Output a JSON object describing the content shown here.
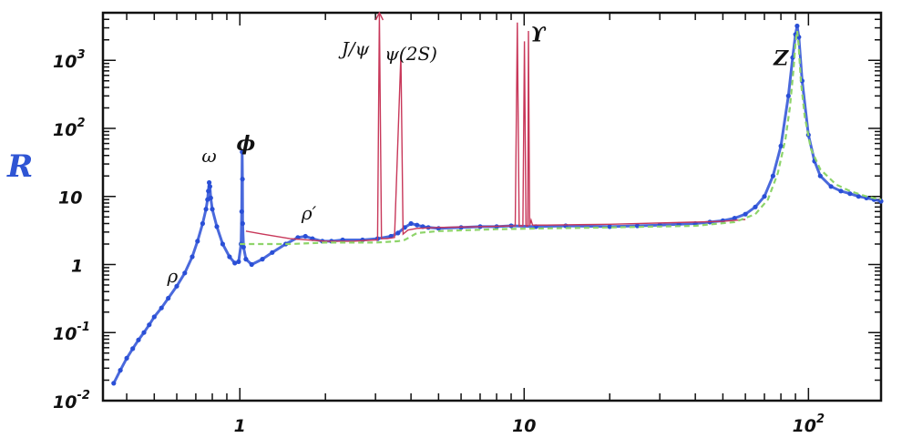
{
  "chart_data": {
    "type": "scatter",
    "title": "",
    "ylabel": "R",
    "xlabel": "",
    "x_scale": "log",
    "y_scale": "log",
    "xlim": [
      0.33,
      180
    ],
    "ylim": [
      0.01,
      5000
    ],
    "x_ticks": [
      {
        "value": 1,
        "label": "1"
      },
      {
        "value": 10,
        "label": "10"
      },
      {
        "value": 100,
        "label": "10",
        "sup": "2"
      }
    ],
    "y_ticks": [
      {
        "value": 0.01,
        "label": "10",
        "sup": "-2"
      },
      {
        "value": 0.1,
        "label": "10",
        "sup": "-1"
      },
      {
        "value": 1,
        "label": "1"
      },
      {
        "value": 10,
        "label": "10"
      },
      {
        "value": 100,
        "label": "10",
        "sup": "2"
      },
      {
        "value": 1000,
        "label": "10",
        "sup": "3"
      }
    ],
    "annotations": [
      {
        "text": "ρ",
        "x": 0.58,
        "y": 0.55
      },
      {
        "text": "ω",
        "x": 0.78,
        "y": 32
      },
      {
        "text": "ϕ",
        "x": 1.05,
        "y": 48
      },
      {
        "text": "ρ′",
        "x": 1.75,
        "y": 4.6
      },
      {
        "text": "J/ψ",
        "x": 2.55,
        "y": 1200
      },
      {
        "text": "ψ(2S)",
        "x": 4.0,
        "y": 1000
      },
      {
        "text": "ϒ",
        "x": 11.2,
        "y": 1900
      },
      {
        "text": "Z",
        "x": 80,
        "y": 850
      }
    ],
    "series": [
      {
        "color": "#2a4fd6",
        "style": "points",
        "x": [
          0.36,
          0.38,
          0.4,
          0.42,
          0.44,
          0.46,
          0.48,
          0.5,
          0.53,
          0.56,
          0.6,
          0.64,
          0.68,
          0.71,
          0.74,
          0.76,
          0.77,
          0.775,
          0.78,
          0.785,
          0.79,
          0.8,
          0.83,
          0.87,
          0.92,
          0.96,
          0.99,
          1.01,
          1.015,
          1.019,
          1.021,
          1.023,
          1.03,
          1.05,
          1.1,
          1.2,
          1.3,
          1.45,
          1.6,
          1.7,
          1.8,
          1.95,
          2.1,
          2.3,
          2.7,
          3.05,
          3.4,
          3.6,
          3.8,
          4.0,
          4.2,
          4.4,
          4.6,
          5.0,
          6.0,
          7.0,
          8.0,
          9.0,
          11.0,
          14.0,
          20.0,
          25.0,
          30.0,
          35.0,
          40.0,
          45.0,
          50.0,
          55.0,
          60.0,
          65.0,
          70.0,
          75.0,
          80.0,
          85.0,
          88.0,
          90.0,
          91.2,
          92.5,
          95.0,
          100.0,
          105.0,
          110.0,
          120.0,
          130.0,
          140.0,
          150.0,
          160.0,
          170.0,
          180.0
        ],
        "y": [
          0.018,
          0.028,
          0.042,
          0.058,
          0.078,
          0.1,
          0.13,
          0.17,
          0.23,
          0.32,
          0.48,
          0.75,
          1.3,
          2.2,
          4.0,
          6.5,
          9.0,
          12.0,
          16.0,
          14.0,
          9.5,
          6.5,
          3.6,
          2.0,
          1.3,
          1.05,
          1.1,
          2.0,
          6.0,
          45.0,
          18.0,
          4.0,
          1.8,
          1.2,
          1.0,
          1.2,
          1.5,
          2.0,
          2.5,
          2.6,
          2.4,
          2.2,
          2.2,
          2.3,
          2.3,
          2.4,
          2.6,
          2.9,
          3.5,
          4.0,
          3.8,
          3.6,
          3.5,
          3.4,
          3.5,
          3.6,
          3.6,
          3.7,
          3.6,
          3.7,
          3.6,
          3.7,
          3.8,
          3.9,
          4.0,
          4.2,
          4.4,
          4.8,
          5.5,
          7.0,
          10.0,
          20.0,
          55.0,
          300.0,
          1100.0,
          2400.0,
          3200.0,
          2200.0,
          500.0,
          80.0,
          33.0,
          20.0,
          14.0,
          12.0,
          11.0,
          10.0,
          9.5,
          9.0,
          8.5
        ]
      },
      {
        "color": "#c8385a",
        "style": "line",
        "x": [
          1.05,
          1.2,
          1.5,
          2.0,
          2.5,
          3.0,
          3.05,
          3.096,
          3.15,
          3.3,
          3.5,
          3.686,
          3.75,
          3.9,
          4.2,
          5.0,
          7.0,
          9.3,
          9.46,
          9.6,
          9.9,
          10.02,
          10.15,
          10.3,
          10.355,
          10.45,
          10.58,
          10.7,
          12.0,
          20.0,
          50.0,
          60.0
        ],
        "y": [
          3.1,
          2.8,
          2.4,
          2.2,
          2.2,
          2.3,
          2.3,
          5000,
          2.4,
          2.4,
          2.5,
          1200,
          2.8,
          3.2,
          3.4,
          3.5,
          3.6,
          3.7,
          3600,
          3.7,
          3.7,
          1900,
          3.7,
          3.7,
          2700,
          3.7,
          4.5,
          3.8,
          3.8,
          3.9,
          4.3,
          4.6
        ]
      },
      {
        "color": "#8ed46a",
        "style": "dashed",
        "x": [
          1.0,
          1.5,
          2.0,
          3.0,
          3.6,
          3.8,
          4.2,
          5.0,
          8.0,
          12.0,
          20.0,
          40.0,
          55.0,
          65.0,
          72.0,
          78.0,
          83.0,
          86.0,
          88.5,
          90.0,
          91.2,
          92.3,
          94.0,
          97.0,
          102.0,
          110.0,
          125.0,
          140.0,
          160.0,
          180.0
        ],
        "y": [
          2.0,
          2.0,
          2.1,
          2.1,
          2.2,
          2.3,
          2.9,
          3.1,
          3.3,
          3.4,
          3.5,
          3.7,
          4.2,
          5.5,
          9.0,
          22.0,
          70.0,
          200.0,
          700.0,
          1800.0,
          2700.0,
          1700.0,
          500.0,
          150.0,
          50.0,
          25.0,
          15.0,
          12.0,
          10.0,
          9.0
        ]
      }
    ]
  }
}
